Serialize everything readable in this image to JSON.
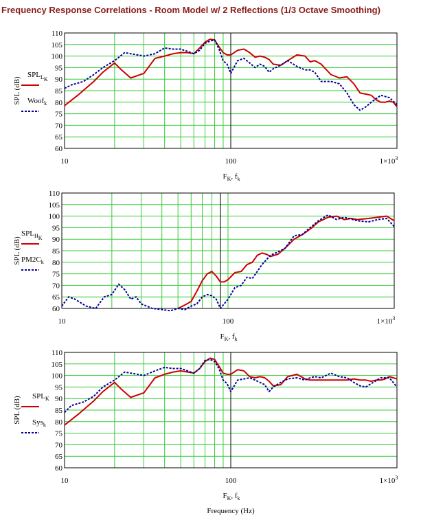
{
  "title": "Frequency Response Correlations - Room Model w/ 2 Reflections (1/3 Octave Smoothing)",
  "footer_xlabel": "Frequency (Hz)",
  "colors": {
    "grid": "#33cc33",
    "solid": "#cc0000",
    "dashed": "#000099",
    "title": "#8b1a1a",
    "marker": "#000000"
  },
  "chart_data": [
    {
      "type": "line",
      "xscale": "log",
      "xlim": [
        10,
        1000
      ],
      "ylim": [
        60,
        110
      ],
      "yticks": [
        60,
        65,
        70,
        75,
        80,
        85,
        90,
        95,
        100,
        105,
        110
      ],
      "xtick_labels": {
        "10": "10",
        "100": "100",
        "1000": "1×10"
      },
      "xtick_exp": "3",
      "ylabel": "SPL (dB)",
      "xlabel": "F",
      "xlabel_parts": [
        "F",
        "K",
        ", f",
        "k"
      ],
      "vline": 100,
      "grid": true,
      "legend_placement": "left",
      "series": [
        {
          "name": "SPL",
          "sub": "L",
          "subsub": "K",
          "style": "solid",
          "x": [
            10,
            12,
            15,
            17,
            20,
            22,
            25,
            30,
            35,
            40,
            45,
            50,
            55,
            60,
            65,
            70,
            75,
            80,
            85,
            90,
            95,
            100,
            110,
            120,
            130,
            140,
            150,
            160,
            170,
            180,
            200,
            220,
            250,
            280,
            300,
            320,
            350,
            400,
            450,
            500,
            550,
            600,
            650,
            700,
            750,
            800,
            850,
            900,
            950,
            1000
          ],
          "y": [
            78.5,
            83,
            89,
            93,
            97,
            94,
            90.5,
            92.5,
            99,
            100,
            101,
            101.5,
            101.5,
            101,
            103.5,
            106,
            107.3,
            107,
            104,
            101.5,
            100.5,
            100.5,
            102.5,
            103,
            101.5,
            99.5,
            100,
            99.5,
            98.5,
            96.5,
            96,
            98,
            100.5,
            100,
            97.5,
            98,
            96.5,
            92,
            90.5,
            91,
            88,
            84,
            83.5,
            83,
            81,
            80,
            80,
            80.5,
            80,
            78
          ]
        },
        {
          "name": "Woof",
          "sub": "k",
          "style": "dashed",
          "x": [
            10,
            11,
            13,
            15,
            17,
            20,
            23,
            25,
            30,
            35,
            40,
            45,
            50,
            55,
            60,
            65,
            70,
            75,
            80,
            85,
            90,
            95,
            100,
            110,
            120,
            130,
            140,
            150,
            160,
            170,
            180,
            200,
            220,
            250,
            280,
            300,
            320,
            350,
            400,
            450,
            500,
            550,
            600,
            650,
            700,
            800,
            900,
            1000
          ],
          "y": [
            86,
            87.5,
            89,
            92,
            95,
            98,
            101.5,
            101,
            100,
            101,
            103.5,
            103,
            103,
            102,
            101,
            102.5,
            105.5,
            106.5,
            107,
            103,
            98,
            96.5,
            92.5,
            98,
            99,
            97,
            95,
            96.5,
            95.5,
            93,
            94.5,
            96,
            98,
            95.5,
            94,
            94,
            93,
            89,
            89,
            88,
            84,
            79,
            76.5,
            78,
            80,
            83,
            82,
            79
          ]
        }
      ]
    },
    {
      "type": "line",
      "xscale": "log",
      "xlim": [
        10,
        1000
      ],
      "ylim": [
        60,
        110
      ],
      "yticks": [
        60,
        65,
        70,
        75,
        80,
        85,
        90,
        95,
        100,
        105,
        110
      ],
      "xtick_labels": {
        "10": "10",
        "100": "100",
        "1000": "1×10"
      },
      "xtick_exp": "3",
      "ylabel": "SPL (dB)",
      "xlabel": "F",
      "xlabel_parts": [
        "F",
        "K",
        ", f",
        "k"
      ],
      "vline": 90,
      "grid": true,
      "legend_placement": "left",
      "series": [
        {
          "name": "SPL",
          "sub": "H",
          "subsub": "K",
          "style": "solid",
          "x": [
            50,
            55,
            60,
            65,
            70,
            75,
            80,
            85,
            90,
            95,
            100,
            110,
            120,
            130,
            140,
            150,
            160,
            170,
            180,
            200,
            220,
            250,
            280,
            300,
            320,
            350,
            400,
            450,
            500,
            550,
            600,
            700,
            800,
            900,
            1000
          ],
          "y": [
            60,
            61.5,
            63,
            67.5,
            72,
            75,
            76,
            74,
            71.5,
            71.5,
            72.5,
            75.5,
            76,
            79,
            80,
            83,
            84,
            83.5,
            82.5,
            83.5,
            86,
            90,
            92,
            93.5,
            95,
            97.5,
            99.5,
            100,
            98.5,
            99,
            98.5,
            99,
            99.5,
            100,
            98
          ]
        },
        {
          "name": "PM2C",
          "sub": "k",
          "style": "dashed",
          "x": [
            10,
            11,
            12,
            14,
            16,
            18,
            20,
            22,
            24,
            26,
            28,
            30,
            35,
            40,
            45,
            50,
            55,
            60,
            65,
            70,
            75,
            80,
            85,
            90,
            100,
            110,
            120,
            130,
            140,
            150,
            160,
            180,
            200,
            220,
            250,
            280,
            300,
            350,
            400,
            450,
            500,
            600,
            700,
            800,
            900,
            1000
          ],
          "y": [
            61,
            65,
            64,
            61,
            60,
            65,
            66,
            70.5,
            68,
            64,
            65,
            62,
            60,
            59.5,
            59,
            60,
            59.5,
            61,
            62,
            65,
            66,
            65.5,
            64,
            60,
            64,
            69,
            70,
            73.5,
            73,
            76,
            79,
            83,
            84.5,
            86,
            91.5,
            92,
            94,
            98,
            100.5,
            98.5,
            99.5,
            98,
            97.5,
            98.5,
            99,
            95.5
          ]
        }
      ]
    },
    {
      "type": "line",
      "xscale": "log",
      "xlim": [
        10,
        1000
      ],
      "ylim": [
        60,
        110
      ],
      "yticks": [
        60,
        65,
        70,
        75,
        80,
        85,
        90,
        95,
        100,
        105,
        110
      ],
      "xtick_labels": {
        "10": "10",
        "100": "100",
        "1000": "1×10"
      },
      "xtick_exp": "3",
      "ylabel": "SPL (dB)",
      "xlabel": "F",
      "xlabel_parts": [
        "F",
        "K",
        ", f",
        "k"
      ],
      "vline": 100,
      "grid": true,
      "legend_placement": "left",
      "series": [
        {
          "name": "SPL",
          "sub": "K",
          "style": "solid",
          "x": [
            10,
            12,
            15,
            17,
            20,
            22,
            25,
            30,
            35,
            40,
            45,
            50,
            55,
            60,
            65,
            70,
            75,
            80,
            85,
            90,
            95,
            100,
            110,
            120,
            130,
            140,
            150,
            160,
            170,
            180,
            200,
            220,
            250,
            280,
            300,
            320,
            350,
            400,
            450,
            500,
            550,
            600,
            650,
            700,
            750,
            800,
            850,
            900,
            950,
            1000
          ],
          "y": [
            78.5,
            83,
            89,
            93,
            97,
            94,
            90.5,
            92.5,
            99,
            100.5,
            101.5,
            102,
            101.5,
            101,
            103,
            106,
            107.5,
            107,
            104,
            101,
            100.5,
            100.5,
            102.5,
            102,
            99.5,
            99,
            99.5,
            99,
            97.5,
            95.5,
            96,
            99.5,
            100.5,
            98.5,
            98,
            98,
            98,
            98,
            98,
            98,
            98.5,
            98,
            98,
            97.5,
            98,
            98,
            98.5,
            99.5,
            99,
            98.5
          ]
        },
        {
          "name": "Sys",
          "sub": "k",
          "style": "dashed",
          "x": [
            10,
            11,
            13,
            15,
            17,
            20,
            23,
            25,
            30,
            35,
            40,
            45,
            50,
            55,
            60,
            65,
            70,
            75,
            80,
            85,
            90,
            95,
            100,
            110,
            120,
            130,
            140,
            150,
            160,
            170,
            180,
            200,
            220,
            250,
            280,
            300,
            320,
            350,
            400,
            450,
            500,
            550,
            600,
            650,
            700,
            800,
            900,
            1000
          ],
          "y": [
            84,
            87,
            88.5,
            91,
            95,
            98,
            101.5,
            101,
            100,
            102,
            103.5,
            103,
            103,
            102,
            101,
            103,
            106.5,
            107,
            106,
            103,
            98,
            96.5,
            93,
            98,
            98.5,
            99,
            98,
            97,
            96,
            93,
            95,
            97,
            98.5,
            99,
            98,
            99,
            99.5,
            99,
            101,
            99.5,
            99,
            97,
            95.5,
            95,
            96.5,
            99,
            99,
            95
          ]
        }
      ]
    }
  ]
}
